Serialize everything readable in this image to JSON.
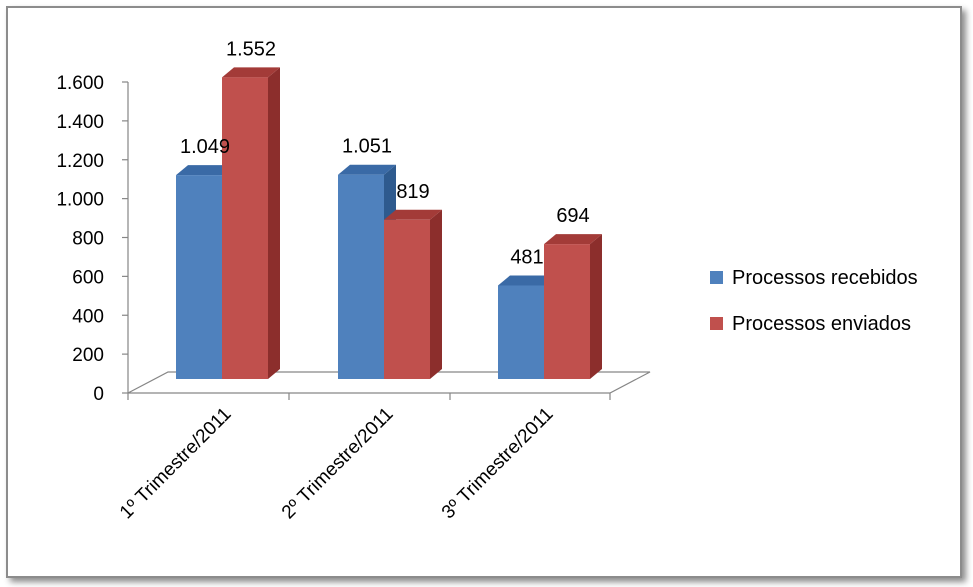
{
  "chart_data": {
    "type": "bar",
    "style": "3d-clustered-column",
    "title": "",
    "xlabel": "",
    "ylabel": "",
    "categories": [
      "1º Trimestre/2011",
      "2º Trimestre/2011",
      "3º Trimestre/2011"
    ],
    "series": [
      {
        "name": "Processos recebidos",
        "values": [
          1049,
          1051,
          481
        ],
        "labels": [
          "1.049",
          "1.051",
          "481"
        ],
        "color": "#4F81BD",
        "side_color": "#2E5A8E",
        "top_color": "#3A6AA6"
      },
      {
        "name": "Processos enviados",
        "values": [
          1552,
          819,
          694
        ],
        "labels": [
          "1.552",
          "819",
          "694"
        ],
        "color": "#C0504D",
        "side_color": "#8C2E2C",
        "top_color": "#A33B38"
      }
    ],
    "ylim": [
      0,
      1600
    ],
    "yticks": [
      0,
      200,
      400,
      600,
      800,
      1000,
      1200,
      1400,
      1600
    ],
    "ytick_labels": [
      "0",
      "200",
      "400",
      "600",
      "800",
      "1.000",
      "1.200",
      "1.400",
      "1.600"
    ],
    "grid": false,
    "legend_position": "right"
  }
}
